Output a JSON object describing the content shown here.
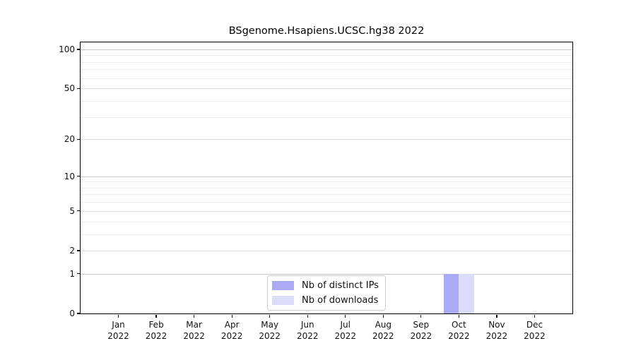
{
  "chart_data": {
    "type": "bar",
    "title": "BSgenome.Hsapiens.UCSC.hg38 2022",
    "categories": [
      "Jan 2022",
      "Feb 2022",
      "Mar 2022",
      "Apr 2022",
      "May 2022",
      "Jun 2022",
      "Jul 2022",
      "Aug 2022",
      "Sep 2022",
      "Oct 2022",
      "Nov 2022",
      "Dec 2022"
    ],
    "series": [
      {
        "name": "Nb of distinct IPs",
        "color": "#aaaaf7",
        "values": [
          0,
          0,
          0,
          0,
          0,
          0,
          0,
          0,
          0,
          1,
          0,
          0
        ]
      },
      {
        "name": "Nb of downloads",
        "color": "#dbdbfa",
        "values": [
          0,
          0,
          0,
          0,
          0,
          0,
          0,
          0,
          0,
          1,
          0,
          0
        ]
      }
    ],
    "y_ticks": [
      0,
      1,
      2,
      5,
      10,
      20,
      50,
      100
    ],
    "y_minor_ticks": [
      3,
      4,
      6,
      7,
      8,
      9,
      30,
      40,
      60,
      70,
      80,
      90
    ],
    "y_scale": "log1p",
    "ylim": [
      0,
      113
    ],
    "xlabel": "",
    "ylabel": "",
    "grid": true,
    "legend_position": "bottom-center"
  }
}
